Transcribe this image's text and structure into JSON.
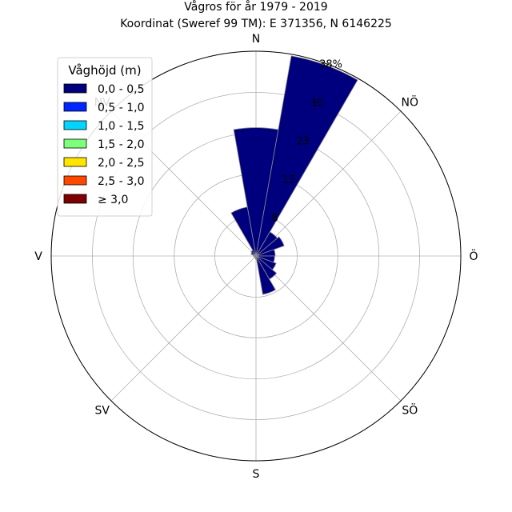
{
  "chart_data": {
    "type": "polar-bar",
    "title_line1": "Vågros för år 1979 - 2019",
    "title_line2": "Koordinat (Sweref 99 TM): E 371356, N 6146225",
    "directions": [
      {
        "label": "N",
        "angle": 0
      },
      {
        "label": "NÖ",
        "angle": 45
      },
      {
        "label": "Ö",
        "angle": 90
      },
      {
        "label": "SÖ",
        "angle": 135
      },
      {
        "label": "S",
        "angle": 180
      },
      {
        "label": "SV",
        "angle": 225
      },
      {
        "label": "V",
        "angle": 270
      },
      {
        "label": "NV",
        "angle": 315
      }
    ],
    "radial_ticks": [
      {
        "value": 7.7,
        "label": "8"
      },
      {
        "value": 15.3,
        "label": "15"
      },
      {
        "value": 23.0,
        "label": "23"
      },
      {
        "value": 30.6,
        "label": "30"
      },
      {
        "value": 38.3,
        "label": "38%"
      }
    ],
    "rmax": 38.3,
    "sector_width_deg": 20,
    "legend": {
      "title": "Våghöjd (m)",
      "entries": [
        {
          "label": "0,0 - 0,5",
          "color": "#00007f"
        },
        {
          "label": "0,5 - 1,0",
          "color": "#0025ff"
        },
        {
          "label": "1,0 - 1,5",
          "color": "#00d4ff"
        },
        {
          "label": "1,5 - 2,0",
          "color": "#7dff7a"
        },
        {
          "label": "2,0 - 2,5",
          "color": "#ffe500"
        },
        {
          "label": "2,5 - 3,0",
          "color": "#ff4700"
        },
        {
          "label": "≥ 3,0",
          "color": "#7f0000"
        }
      ]
    },
    "series": [
      {
        "name": "0,0 - 0,5",
        "color": "#00007f",
        "sectors": [
          {
            "direction_deg": 0,
            "value": 24.0
          },
          {
            "direction_deg": 20,
            "value": 38.0
          },
          {
            "direction_deg": 40,
            "value": 5.2
          },
          {
            "direction_deg": 60,
            "value": 5.6
          },
          {
            "direction_deg": 80,
            "value": 3.6
          },
          {
            "direction_deg": 100,
            "value": 3.5
          },
          {
            "direction_deg": 120,
            "value": 4.0
          },
          {
            "direction_deg": 140,
            "value": 5.0
          },
          {
            "direction_deg": 160,
            "value": 7.3
          },
          {
            "direction_deg": 180,
            "value": 0.6
          },
          {
            "direction_deg": 200,
            "value": 0.4
          },
          {
            "direction_deg": 220,
            "value": 0.3
          },
          {
            "direction_deg": 240,
            "value": 0.4
          },
          {
            "direction_deg": 260,
            "value": 0.4
          },
          {
            "direction_deg": 280,
            "value": 0.5
          },
          {
            "direction_deg": 300,
            "value": 1.0
          },
          {
            "direction_deg": 320,
            "value": 1.2
          },
          {
            "direction_deg": 340,
            "value": 9.3
          }
        ]
      }
    ]
  }
}
